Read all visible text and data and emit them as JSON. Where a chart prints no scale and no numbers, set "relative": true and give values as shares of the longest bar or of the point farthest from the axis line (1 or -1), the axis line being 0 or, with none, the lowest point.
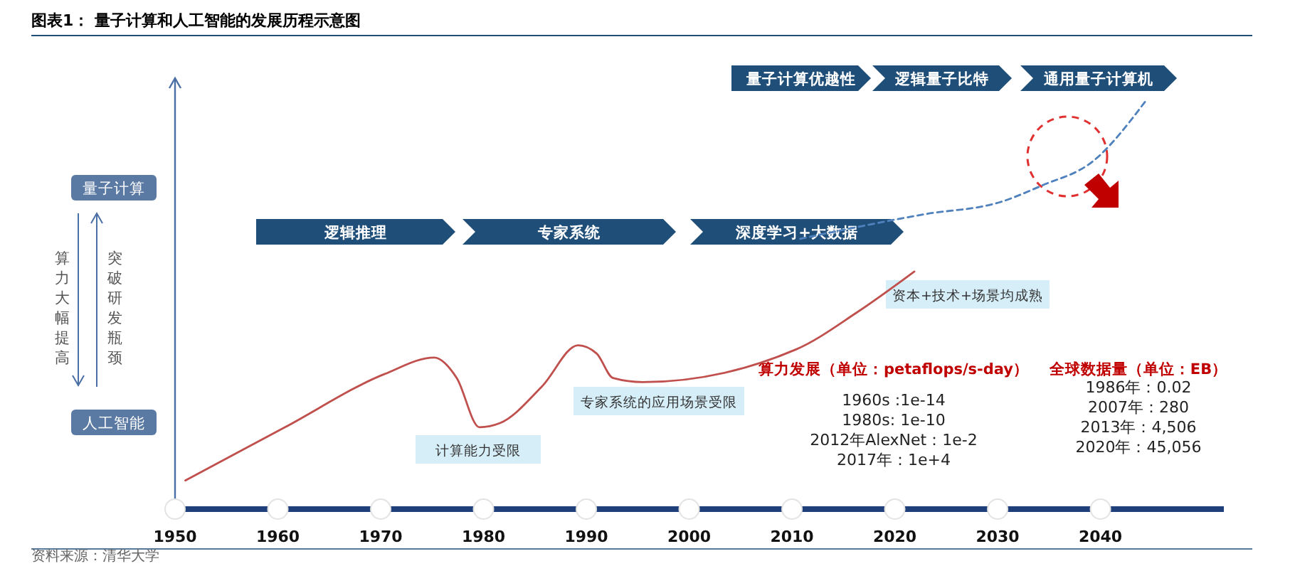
{
  "chart_data": {
    "type": "line",
    "title": "图表1：  量子计算和人工智能的发展历程示意图",
    "relative": true,
    "xlim": [
      1950,
      2052
    ],
    "xticks": [
      1950,
      1960,
      1970,
      1980,
      1990,
      2000,
      2010,
      2020,
      2030,
      2040
    ],
    "grid": false,
    "legend": false,
    "marker": "none",
    "series": [
      {
        "color": "#c0504d",
        "line_style": "solid",
        "x": [
          1951,
          1960.7,
          1970.4,
          1975.2,
          1977.4,
          1979.6,
          1981.6,
          1985.7,
          1989.2,
          1991,
          1992.6,
          1995.5,
          2010.4,
          2016.3,
          2021.9
        ],
        "values": [
          0.07,
          0.2,
          0.33,
          0.37,
          0.32,
          0.2,
          0.21,
          0.3,
          0.4,
          0.38,
          0.32,
          0.31,
          0.39,
          0.48,
          0.58
        ]
      },
      {
        "color": "#4f81bd",
        "line_style": "dashed",
        "x": [
          2010.8,
          2022.9,
          2030.3,
          2034.3,
          2039.3,
          2044.5
        ],
        "values": [
          0.66,
          0.72,
          0.75,
          0.79,
          0.85,
          1
        ]
      }
    ],
    "annotations": [
      "量子计算优越性",
      "逻辑量子比特",
      "通用量子计算机",
      "逻辑推理",
      "专家系统",
      "深度学习+大数据",
      "量子计算",
      "人工智能",
      "算力大幅提高",
      "突破研发瓶颈",
      "计算能力受限",
      "专家系统的应用场景受限",
      "资本+技术+场景均成熟",
      "算力发展（单位：petaflops/s-day）",
      "1960s :1e-14",
      "1980s: 1e-10",
      "2012年AlexNet：1e-2",
      "2017年：1e+4",
      "全球数据量（单位：EB）",
      "1986年：0.02",
      "2007年：280",
      "2013年：4,506",
      "2020年：45,056",
      "资料来源：清华大学"
    ]
  }
}
